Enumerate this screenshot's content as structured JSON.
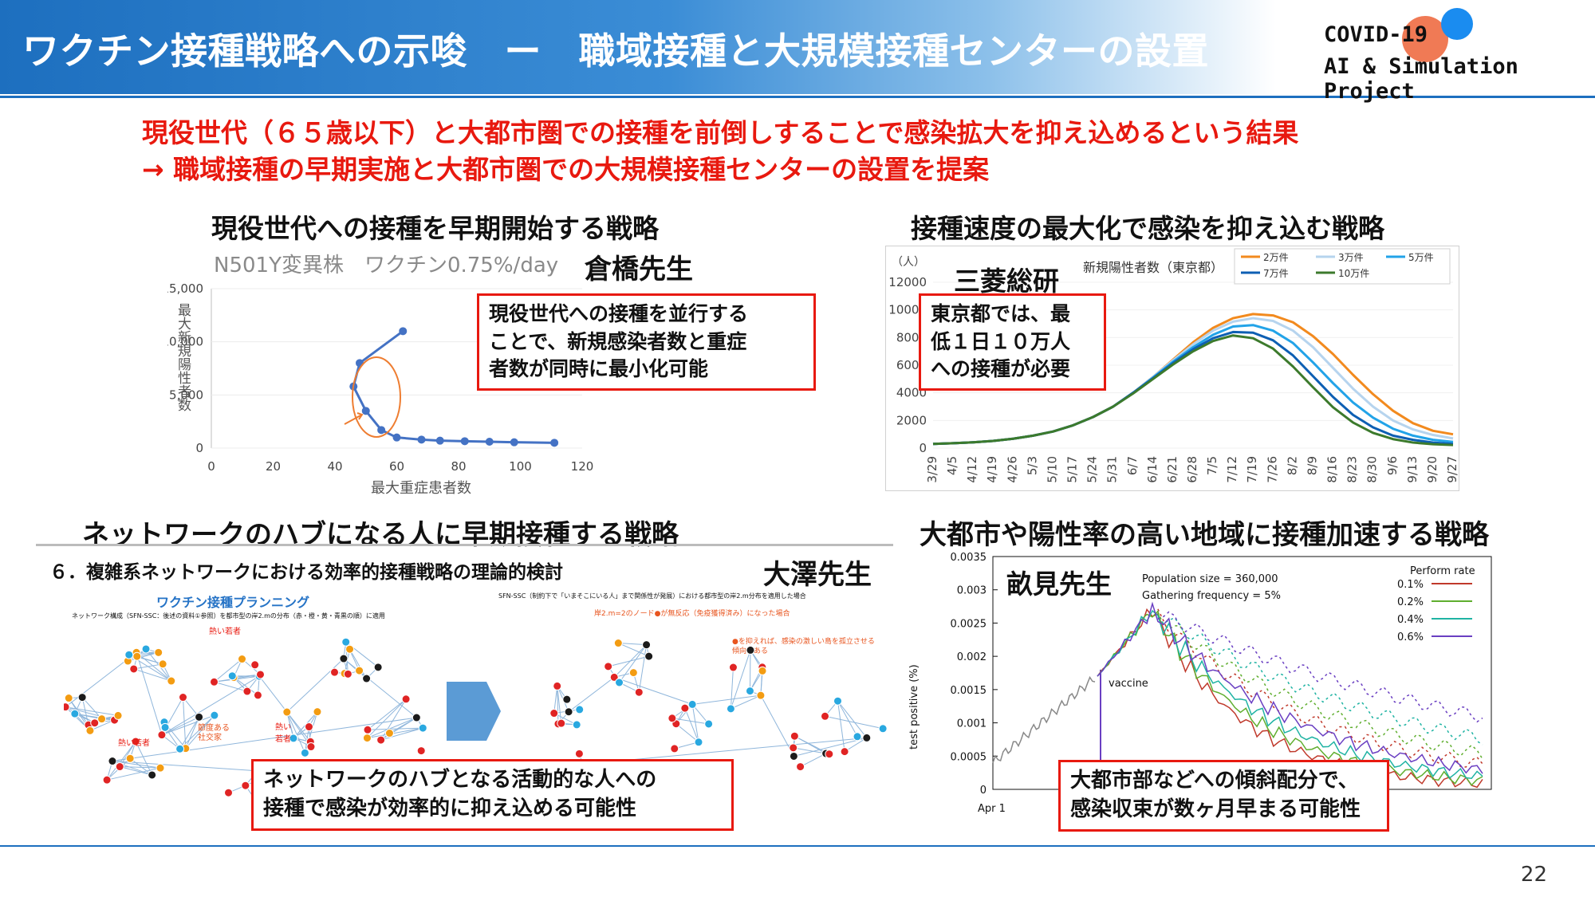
{
  "header": {
    "title": "ワクチン接種戦略への示唆　ー　職域接種と大規模接種センターの設置",
    "brand_line1": "COVID-19",
    "brand_line2": "AI & Simulation Project"
  },
  "lead": {
    "line1": "現役世代（６５歳以下）と大都市圏での接種を前倒しすることで感染拡大を抑え込めるという結果",
    "line2": "→ 職域接種の早期実施と大都市圏での大規模接種センターの設置を提案"
  },
  "q1": {
    "title": "現役世代への接種を早期開始する戦略",
    "author": "倉橋先生",
    "chart_subtitle": "N501Y変異株　ワクチン0.75%/day",
    "callout": [
      "現役世代への接種を並行する",
      "ことで、新規感染者数と重症",
      "者数が同時に最小化可能"
    ]
  },
  "q2": {
    "title": "接種速度の最大化で感染を抑え込む戦略",
    "author": "三菱総研",
    "callout": [
      "東京都では、最",
      "低１日１０万人",
      "への接種が必要"
    ]
  },
  "q3": {
    "title": "ネットワークのハブになる人に早期接種する戦略",
    "subheading": "６．複雑系ネットワークにおける効率的接種戦略の理論的検討",
    "author": "大澤先生",
    "panel_title": "ワクチン接種プランニング",
    "panel_note1": "ネットワーク構成（SFN-SSC：後述の資料①参照）を都市型の岸2.mの分布（赤・橙・黄・青黒の順）に適用",
    "panel_note2": "SFN-SSC（制約下で「いまそこにいる人」まで関係性が発展）における都市型の岸2.m分布を適用した場合",
    "panel_note3": "岸2.m=2のノード●が無反応（免疫獲得済み）になった場合",
    "panel_note4": "●を抑えれば、感染の激しい島を孤立させる傾向がある",
    "label_hot1": "熱い若者",
    "label_hot2": "熱い若者",
    "label_hot3": "熱い若者",
    "label_social": "節度ある社交家",
    "callout": [
      "ネットワークのハブとなる活動的な人への",
      "接種で感染が効率的に抑え込める可能性"
    ]
  },
  "q4": {
    "title": "大都市や陽性率の高い地域に接種加速する戦略",
    "author": "畝見先生",
    "info1": "Population size = 360,000",
    "info2": "Gathering frequency = 5%",
    "vaccine_label": "vaccine",
    "callout": [
      "大都市部などへの傾斜配分で、",
      "感染収束が数ヶ月早まる可能性"
    ]
  },
  "page_number": "22",
  "colors": {
    "accent_red": "#e8190f",
    "header_blue": "#1d6fbf"
  },
  "chart_data": [
    {
      "type": "line",
      "title": "",
      "xlabel": "最大重症患者数",
      "ylabel": "最大新規陽性者数",
      "xlim": [
        0,
        120
      ],
      "ylim": [
        0,
        15000
      ],
      "xticks": [
        "0",
        "20",
        "40",
        "60",
        "80",
        "100",
        "120"
      ],
      "yticks": [
        "0",
        "5,000",
        "10,000",
        "15,000"
      ],
      "series": [
        {
          "x": [
            62,
            48,
            46,
            50,
            55,
            60,
            68,
            74,
            82,
            90,
            98,
            111
          ],
          "y": [
            11000,
            8000,
            5800,
            3500,
            1700,
            1000,
            800,
            700,
            650,
            600,
            550,
            500
          ]
        }
      ]
    },
    {
      "type": "line",
      "title": "新規陽性者数（東京都）",
      "ylabel": "（人）",
      "ylim": [
        0,
        12000
      ],
      "yticks": [
        "0",
        "2000",
        "4000",
        "6000",
        "8000",
        "10000",
        "12000"
      ],
      "categories": [
        "3/29",
        "4/5",
        "4/12",
        "4/19",
        "4/26",
        "5/3",
        "5/10",
        "5/17",
        "5/24",
        "5/31",
        "6/7",
        "6/14",
        "6/21",
        "6/28",
        "7/5",
        "7/12",
        "7/19",
        "7/26",
        "8/2",
        "8/9",
        "8/16",
        "8/23",
        "8/30",
        "9/6",
        "9/13",
        "9/20",
        "9/27"
      ],
      "series": [
        {
          "name": "2万件",
          "color": "#f28a1e",
          "values": [
            300,
            350,
            420,
            520,
            680,
            900,
            1200,
            1650,
            2250,
            3000,
            4000,
            5150,
            6400,
            7650,
            8700,
            9400,
            9700,
            9600,
            9100,
            8100,
            6800,
            5300,
            3900,
            2700,
            1800,
            1250,
            1000
          ]
        },
        {
          "name": "3万件",
          "color": "#b6d4ee",
          "values": [
            300,
            350,
            420,
            520,
            680,
            900,
            1200,
            1650,
            2250,
            3000,
            4000,
            5150,
            6350,
            7500,
            8500,
            9150,
            9400,
            9200,
            8500,
            7300,
            5800,
            4300,
            3000,
            2000,
            1350,
            950,
            700
          ]
        },
        {
          "name": "5万件",
          "color": "#22a3e8",
          "values": [
            300,
            350,
            420,
            520,
            680,
            900,
            1200,
            1650,
            2250,
            3000,
            4000,
            5100,
            6250,
            7300,
            8200,
            8800,
            8900,
            8500,
            7600,
            6200,
            4700,
            3300,
            2200,
            1400,
            900,
            600,
            450
          ]
        },
        {
          "name": "7万件",
          "color": "#0d5fb3",
          "values": [
            300,
            350,
            420,
            520,
            680,
            900,
            1200,
            1650,
            2250,
            3000,
            4000,
            5050,
            6150,
            7150,
            7950,
            8400,
            8350,
            7800,
            6700,
            5200,
            3700,
            2400,
            1500,
            900,
            600,
            400,
            300
          ]
        },
        {
          "name": "10万件",
          "color": "#3c7a2c",
          "values": [
            300,
            350,
            420,
            520,
            680,
            900,
            1200,
            1650,
            2250,
            3000,
            3950,
            5000,
            6050,
            7000,
            7750,
            8150,
            7950,
            7200,
            5900,
            4400,
            2950,
            1850,
            1100,
            650,
            400,
            280,
            220
          ]
        }
      ]
    },
    {
      "type": "line",
      "ylabel": "test positive (%)",
      "xlabel": "Apr 1",
      "ylim": [
        0,
        0.0035
      ],
      "yticks": [
        "0",
        "0.0005",
        "0.001",
        "0.0015",
        "0.002",
        "0.0025",
        "0.003",
        "0.0035"
      ],
      "legend_title": "Perform rate",
      "series": [
        {
          "name": "0.1%",
          "color": "#c0392b"
        },
        {
          "name": "0.2%",
          "color": "#5fae2e"
        },
        {
          "name": "0.4%",
          "color": "#1fb3a3"
        },
        {
          "name": "0.6%",
          "color": "#6a3fc2"
        }
      ]
    }
  ]
}
